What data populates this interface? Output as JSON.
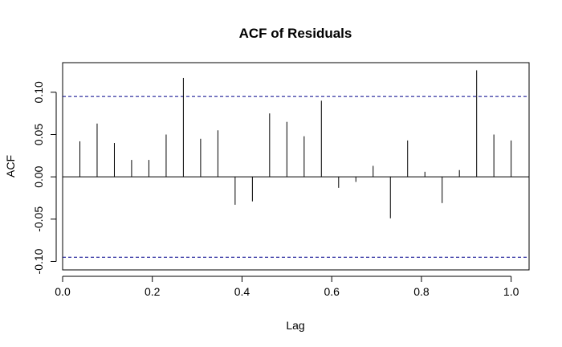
{
  "chart_data": {
    "type": "bar",
    "title": "ACF of Residuals",
    "xlabel": "Lag",
    "ylabel": "ACF",
    "xlim": [
      0,
      1.04
    ],
    "ylim": [
      -0.11,
      0.135
    ],
    "x_ticks": [
      0.0,
      0.2,
      0.4,
      0.6,
      0.8,
      1.0
    ],
    "x_tick_labels": [
      "0.0",
      "0.2",
      "0.4",
      "0.6",
      "0.8",
      "1.0"
    ],
    "y_ticks": [
      -0.1,
      -0.05,
      0.0,
      0.05,
      0.1
    ],
    "y_tick_labels": [
      "-0.10",
      "-0.05",
      "0.00",
      "0.05",
      "0.10"
    ],
    "confidence_bounds": [
      0.095,
      -0.095
    ],
    "confidence_color": "#00008b",
    "bar_color": "#000000",
    "zero_line": true,
    "grid": false,
    "series": [
      {
        "x": [
          0.0385,
          0.0769,
          0.1154,
          0.1538,
          0.1923,
          0.2308,
          0.2692,
          0.3077,
          0.3462,
          0.3846,
          0.4231,
          0.4615,
          0.5,
          0.5385,
          0.5769,
          0.6154,
          0.6538,
          0.6923,
          0.7308,
          0.7692,
          0.8077,
          0.8462,
          0.8846,
          0.9231,
          0.9615,
          1.0
        ],
        "values": [
          0.042,
          0.063,
          0.04,
          0.02,
          0.02,
          0.05,
          0.117,
          0.045,
          0.055,
          -0.033,
          -0.029,
          0.075,
          0.065,
          0.048,
          0.09,
          -0.013,
          -0.006,
          0.013,
          -0.049,
          0.043,
          0.006,
          -0.031,
          0.008,
          0.126,
          0.05,
          0.043
        ]
      }
    ]
  }
}
